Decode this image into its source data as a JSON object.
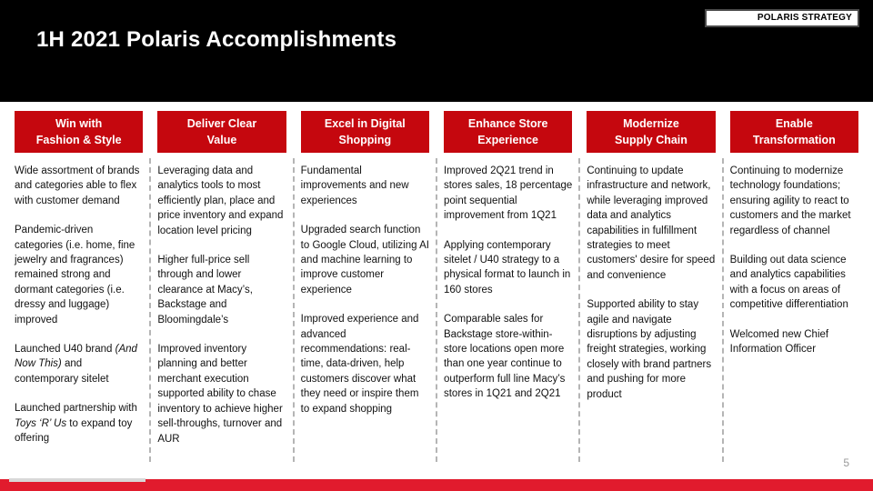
{
  "slide": {
    "title": "1H 2021 Polaris Accomplishments",
    "badge": "POLARIS STRATEGY",
    "page_number": "5",
    "colors": {
      "header_red": "#C5070E",
      "footer_red": "#E11B2D",
      "top_band": "#000000",
      "body_text": "#111111",
      "divider_gray": "#b5b5b5"
    }
  },
  "columns": [
    {
      "header": "Win with\nFashion & Style",
      "paragraphs": [
        [
          {
            "text": "Wide assortment of brands and categories able to flex with customer demand"
          }
        ],
        [
          {
            "text": "Pandemic-driven categories (i.e. home, fine jewelry and fragrances) remained strong and dormant categories (i.e. dressy and luggage) improved"
          }
        ],
        [
          {
            "text": "Launched U40 brand "
          },
          {
            "text": "(And Now This)",
            "italic": true
          },
          {
            "text": " and contemporary sitelet"
          }
        ],
        [
          {
            "text": "Launched partnership with "
          },
          {
            "text": "Toys ‘R’ Us",
            "italic": true
          },
          {
            "text": " to expand toy offering"
          }
        ]
      ]
    },
    {
      "header": "Deliver Clear\nValue",
      "paragraphs": [
        [
          {
            "text": "Leveraging data and analytics tools to most efficiently plan, place and price inventory and expand location level pricing"
          }
        ],
        [
          {
            "text": "Higher full-price sell through and lower clearance at Macy’s, Backstage and Bloomingdale’s"
          }
        ],
        [
          {
            "text": "Improved inventory planning and better merchant execution supported ability to chase inventory to achieve higher sell-throughs, turnover and AUR"
          }
        ]
      ]
    },
    {
      "header": "Excel in Digital\nShopping",
      "paragraphs": [
        [
          {
            "text": "Fundamental improvements and new experiences"
          }
        ],
        [
          {
            "text": "Upgraded search function to Google Cloud, utilizing AI and machine learning to improve customer experience"
          }
        ],
        [
          {
            "text": "Improved experience and advanced recommendations: real-time, data-driven, help customers discover what they need or inspire them to expand shopping"
          }
        ]
      ]
    },
    {
      "header": "Enhance Store\nExperience",
      "paragraphs": [
        [
          {
            "text": "Improved 2Q21 trend in stores sales, 18 percentage point sequential improvement from 1Q21"
          }
        ],
        [
          {
            "text": "Applying contemporary sitelet / U40 strategy to a physical format to launch in 160 stores"
          }
        ],
        [
          {
            "text": "Comparable sales for Backstage store-within-store locations open more than one year continue to outperform full line Macy’s stores in 1Q21 and 2Q21"
          }
        ]
      ]
    },
    {
      "header": "Modernize\nSupply Chain",
      "paragraphs": [
        [
          {
            "text": "Continuing to update infrastructure and network, while leveraging improved data and analytics capabilities in fulfillment strategies to meet customers' desire for speed and convenience"
          }
        ],
        [
          {
            "text": "Supported ability to stay agile and navigate disruptions by adjusting freight strategies, working closely with brand partners and pushing for more product"
          }
        ]
      ]
    },
    {
      "header": "Enable\nTransformation",
      "paragraphs": [
        [
          {
            "text": "Continuing to modernize technology foundations; ensuring agility to react to customers and the market regardless of channel"
          }
        ],
        [
          {
            "text": "Building out data science and analytics capabilities with a focus on areas of competitive differentiation"
          }
        ],
        [
          {
            "text": "Welcomed new Chief Information Officer"
          }
        ]
      ]
    }
  ]
}
